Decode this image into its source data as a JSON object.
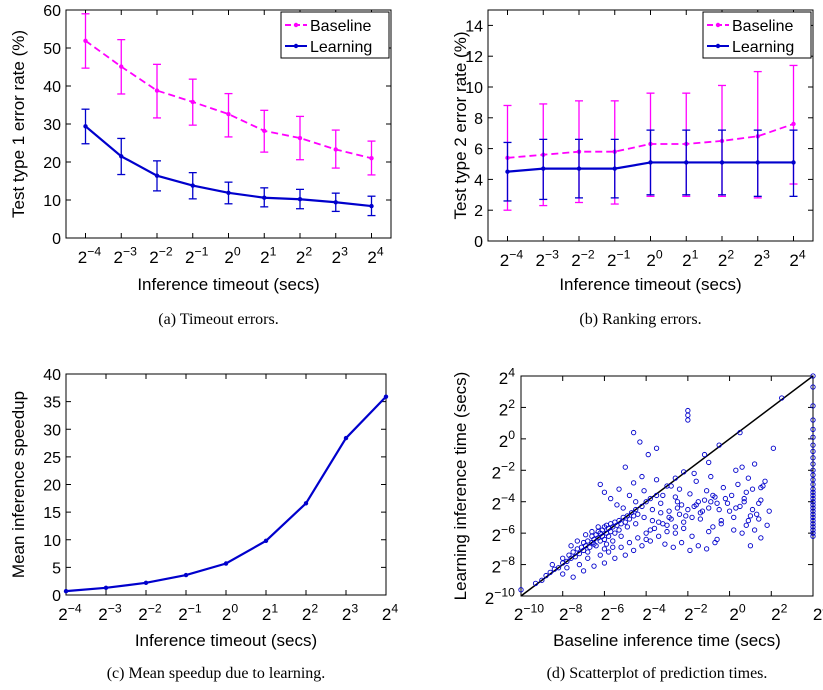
{
  "chart_data": [
    {
      "panel": "a",
      "type": "line",
      "caption": "(a)  Timeout errors.",
      "xlabel": "Inference timeout (secs)",
      "ylabel": "Test type 1 error rate (%)",
      "x_exponents": [
        -4,
        -3,
        -2,
        -1,
        0,
        1,
        2,
        3,
        4
      ],
      "x_tick_labels": [
        "2^-4",
        "2^-3",
        "2^-2",
        "2^-1",
        "2^0",
        "2^1",
        "2^2",
        "2^3",
        "2^4"
      ],
      "ylim": [
        0,
        60
      ],
      "yticks": [
        0,
        10,
        20,
        30,
        40,
        50,
        60
      ],
      "legend_position": "top-right",
      "series": [
        {
          "name": "Baseline",
          "color": "#ff00ff",
          "dash": true,
          "values": [
            51.9,
            45.1,
            38.8,
            35.8,
            32.6,
            28.2,
            26.3,
            23.3,
            21.0
          ],
          "lower": [
            44.7,
            37.9,
            31.6,
            29.7,
            26.6,
            22.6,
            20.6,
            18.4,
            16.6
          ],
          "upper": [
            59.0,
            52.2,
            45.7,
            41.8,
            38.0,
            33.6,
            32.0,
            28.4,
            25.5
          ]
        },
        {
          "name": "Learning",
          "color": "#0000cc",
          "dash": false,
          "values": [
            29.4,
            21.5,
            16.4,
            13.8,
            11.9,
            10.6,
            10.2,
            9.4,
            8.4
          ],
          "lower": [
            24.8,
            16.7,
            12.4,
            10.3,
            9.0,
            8.2,
            7.7,
            7.0,
            5.9
          ],
          "upper": [
            33.9,
            26.2,
            20.3,
            17.2,
            14.7,
            13.2,
            12.8,
            11.8,
            11.0
          ]
        }
      ]
    },
    {
      "panel": "b",
      "type": "line",
      "caption": "(b)  Ranking errors.",
      "xlabel": "Inference timeout (secs)",
      "ylabel": "Test type 2 error rate (%)",
      "x_exponents": [
        -4,
        -3,
        -2,
        -1,
        0,
        1,
        2,
        3,
        4
      ],
      "x_tick_labels": [
        "2^-4",
        "2^-3",
        "2^-2",
        "2^-1",
        "2^0",
        "2^1",
        "2^2",
        "2^3",
        "2^4"
      ],
      "ylim": [
        0,
        15
      ],
      "yticks": [
        0,
        2,
        4,
        6,
        8,
        10,
        12,
        14
      ],
      "legend_position": "top-right",
      "series": [
        {
          "name": "Baseline",
          "color": "#ff00ff",
          "dash": true,
          "values": [
            5.4,
            5.6,
            5.8,
            5.8,
            6.3,
            6.3,
            6.5,
            6.8,
            7.6
          ],
          "lower": [
            2.0,
            2.3,
            2.5,
            2.4,
            2.9,
            2.9,
            2.9,
            2.8,
            3.7
          ],
          "upper": [
            8.8,
            8.9,
            9.1,
            9.1,
            9.6,
            9.6,
            10.1,
            11.0,
            11.4
          ]
        },
        {
          "name": "Learning",
          "color": "#0000cc",
          "dash": false,
          "values": [
            4.5,
            4.7,
            4.7,
            4.7,
            5.1,
            5.1,
            5.1,
            5.1,
            5.1
          ],
          "lower": [
            2.6,
            2.7,
            2.8,
            2.8,
            3.0,
            3.0,
            3.0,
            2.9,
            2.9
          ],
          "upper": [
            6.4,
            6.6,
            6.6,
            6.6,
            7.2,
            7.2,
            7.2,
            7.2,
            7.2
          ]
        }
      ]
    },
    {
      "panel": "c",
      "type": "line",
      "caption": "(c)  Mean speedup due to learning.",
      "xlabel": "Inference timeout (secs)",
      "ylabel": "Mean inference speedup",
      "x_exponents": [
        -4,
        -3,
        -2,
        -1,
        0,
        1,
        2,
        3,
        4
      ],
      "x_tick_labels": [
        "2^-4",
        "2^-3",
        "2^-2",
        "2^-1",
        "2^0",
        "2^1",
        "2^2",
        "2^3",
        "2^4"
      ],
      "ylim": [
        0,
        40
      ],
      "yticks": [
        0,
        5,
        10,
        15,
        20,
        25,
        30,
        35,
        40
      ],
      "series": [
        {
          "color": "#0000cc",
          "values": [
            0.7,
            1.3,
            2.2,
            3.6,
            5.7,
            9.8,
            16.6,
            28.4,
            35.9
          ]
        }
      ]
    },
    {
      "panel": "d",
      "type": "scatter",
      "caption": "(d)  Scatterplot of prediction times.",
      "xlabel": "Baseline inference time (secs)",
      "ylabel": "Learning inference time (secs)",
      "xlim_log2": [
        -10,
        4
      ],
      "ylim_log2": [
        -10,
        4
      ],
      "x_tick_labels": [
        "2^-10",
        "2^-8",
        "2^-6",
        "2^-4",
        "2^-2",
        "2^0",
        "2^2",
        "2^4"
      ],
      "y_tick_labels": [
        "2^-10",
        "2^-8",
        "2^-6",
        "2^-4",
        "2^-2",
        "2^0",
        "2^2",
        "2^4"
      ],
      "diagonal": true,
      "color": "#0000cc",
      "points_log2": [
        [
          -10,
          -9.6
        ],
        [
          -9.3,
          -9.2
        ],
        [
          -9.0,
          -9.0
        ],
        [
          -8.8,
          -8.7
        ],
        [
          -8.6,
          -8.5
        ],
        [
          -8.4,
          -8.3
        ],
        [
          -8.5,
          -8.0
        ],
        [
          -8.2,
          -8.2
        ],
        [
          -8.0,
          -7.9
        ],
        [
          -8.0,
          -7.6
        ],
        [
          -7.8,
          -7.8
        ],
        [
          -7.7,
          -7.4
        ],
        [
          -7.6,
          -7.6
        ],
        [
          -7.5,
          -7.2
        ],
        [
          -7.4,
          -7.5
        ],
        [
          -7.3,
          -7.0
        ],
        [
          -7.2,
          -7.3
        ],
        [
          -7.1,
          -6.9
        ],
        [
          -7.0,
          -7.1
        ],
        [
          -7.0,
          -6.6
        ],
        [
          -6.9,
          -6.8
        ],
        [
          -6.8,
          -7.2
        ],
        [
          -6.8,
          -6.5
        ],
        [
          -6.7,
          -6.9
        ],
        [
          -6.6,
          -6.6
        ],
        [
          -6.6,
          -6.2
        ],
        [
          -6.5,
          -6.7
        ],
        [
          -6.5,
          -6.4
        ],
        [
          -6.4,
          -6.1
        ],
        [
          -6.4,
          -6.8
        ],
        [
          -6.3,
          -6.3
        ],
        [
          -6.3,
          -5.9
        ],
        [
          -6.2,
          -6.5
        ],
        [
          -6.2,
          -6.0
        ],
        [
          -6.1,
          -6.2
        ],
        [
          -6.1,
          -5.8
        ],
        [
          -6.0,
          -6.4
        ],
        [
          -6.0,
          -5.6
        ],
        [
          -5.9,
          -6.0
        ],
        [
          -5.9,
          -5.5
        ],
        [
          -5.8,
          -6.2
        ],
        [
          -5.8,
          -5.7
        ],
        [
          -5.7,
          -5.9
        ],
        [
          -5.7,
          -5.4
        ],
        [
          -5.6,
          -5.6
        ],
        [
          -5.5,
          -5.3
        ],
        [
          -5.5,
          -6.0
        ],
        [
          -5.4,
          -5.5
        ],
        [
          -5.3,
          -5.2
        ],
        [
          -5.3,
          -5.8
        ],
        [
          -5.2,
          -5.4
        ],
        [
          -5.1,
          -5.0
        ],
        [
          -5.0,
          -5.3
        ],
        [
          -4.9,
          -4.9
        ],
        [
          -4.8,
          -5.1
        ],
        [
          -4.7,
          -4.7
        ],
        [
          -4.6,
          -4.9
        ],
        [
          -4.5,
          -4.5
        ],
        [
          -4.4,
          -4.8
        ],
        [
          -4.2,
          -4.3
        ],
        [
          -4.0,
          -4.0
        ],
        [
          -3.8,
          -3.8
        ],
        [
          -3.5,
          -3.6
        ],
        [
          -3.0,
          -3.0
        ],
        [
          -2.6,
          -2.5
        ],
        [
          -2.2,
          -2.1
        ],
        [
          -1.2,
          -1.0
        ],
        [
          -0.5,
          -0.4
        ],
        [
          0.5,
          0.4
        ],
        [
          2.5,
          2.6
        ],
        [
          -8.0,
          -8.6
        ],
        [
          -7.8,
          -8.2
        ],
        [
          -7.5,
          -8.8
        ],
        [
          -7.2,
          -8.0
        ],
        [
          -7.0,
          -8.4
        ],
        [
          -6.8,
          -7.6
        ],
        [
          -6.5,
          -8.1
        ],
        [
          -6.2,
          -7.4
        ],
        [
          -6.0,
          -7.9
        ],
        [
          -5.8,
          -7.2
        ],
        [
          -5.5,
          -7.6
        ],
        [
          -5.2,
          -6.9
        ],
        [
          -5.0,
          -7.4
        ],
        [
          -4.8,
          -6.6
        ],
        [
          -4.6,
          -7.1
        ],
        [
          -4.4,
          -6.3
        ],
        [
          -4.2,
          -6.8
        ],
        [
          -4.0,
          -6.0
        ],
        [
          -3.8,
          -6.5
        ],
        [
          -3.6,
          -5.7
        ],
        [
          -3.4,
          -6.2
        ],
        [
          -3.2,
          -5.4
        ],
        [
          -3.0,
          -5.9
        ],
        [
          -2.8,
          -5.1
        ],
        [
          -2.6,
          -5.6
        ],
        [
          -2.4,
          -4.8
        ],
        [
          -2.2,
          -5.3
        ],
        [
          -2.0,
          -4.5
        ],
        [
          -1.8,
          -5.0
        ],
        [
          -1.6,
          -4.2
        ],
        [
          -1.4,
          -4.7
        ],
        [
          -1.2,
          -3.9
        ],
        [
          -1.0,
          -4.4
        ],
        [
          -0.8,
          -3.6
        ],
        [
          -0.6,
          -4.1
        ],
        [
          -0.4,
          -5.2
        ],
        [
          -0.2,
          -3.8
        ],
        [
          0.0,
          -4.6
        ],
        [
          0.2,
          -5.0
        ],
        [
          0.5,
          -4.3
        ],
        [
          0.8,
          -3.4
        ],
        [
          1.0,
          -4.9
        ],
        [
          1.2,
          -5.8
        ],
        [
          1.5,
          -3.1
        ],
        [
          1.8,
          -5.5
        ],
        [
          -5.3,
          -3.2
        ],
        [
          -5.0,
          -1.8
        ],
        [
          -4.6,
          -2.8
        ],
        [
          -4.2,
          -2.4
        ],
        [
          -3.9,
          -1.0
        ],
        [
          -3.5,
          -2.6
        ],
        [
          -3.2,
          -3.6
        ],
        [
          -2.8,
          -3.0
        ],
        [
          -2.5,
          -4.0
        ],
        [
          -1.7,
          -2.2
        ],
        [
          -1.0,
          -1.5
        ],
        [
          0.6,
          -1.8
        ],
        [
          0.9,
          -2.5
        ],
        [
          1.6,
          -3.0
        ],
        [
          2.1,
          -0.6
        ],
        [
          -2.0,
          1.8
        ],
        [
          -2.0,
          1.5
        ],
        [
          -2.0,
          1.2
        ],
        [
          -4.6,
          0.4
        ],
        [
          -4.3,
          -0.2
        ],
        [
          -3.5,
          -0.6
        ],
        [
          -6.2,
          -2.9
        ],
        [
          -6.0,
          -3.4
        ],
        [
          -5.7,
          -3.8
        ],
        [
          -5.4,
          -4.2
        ],
        [
          -5.1,
          -4.4
        ],
        [
          -4.8,
          -3.6
        ],
        [
          -4.5,
          -4.0
        ],
        [
          -4.1,
          -3.3
        ],
        [
          -3.7,
          -4.5
        ],
        [
          -3.3,
          -4.1
        ],
        [
          -2.9,
          -4.6
        ],
        [
          -2.6,
          -3.7
        ],
        [
          -2.3,
          -4.2
        ],
        [
          -1.9,
          -3.5
        ],
        [
          -1.5,
          -4.0
        ],
        [
          -1.1,
          -3.3
        ],
        [
          -0.7,
          -3.7
        ],
        [
          -0.3,
          -3.1
        ],
        [
          0.1,
          -3.6
        ],
        [
          0.4,
          -2.9
        ],
        [
          0.7,
          -3.8
        ],
        [
          1.1,
          -3.2
        ],
        [
          1.4,
          -4.1
        ],
        [
          1.7,
          -2.7
        ],
        [
          -6.0,
          -7.0
        ],
        [
          -5.6,
          -6.5
        ],
        [
          -5.2,
          -6.2
        ],
        [
          -4.9,
          -5.6
        ],
        [
          -4.5,
          -5.4
        ],
        [
          -4.1,
          -5.0
        ],
        [
          -3.7,
          -5.2
        ],
        [
          -3.3,
          -4.7
        ],
        [
          -2.9,
          -5.0
        ],
        [
          -2.5,
          -4.4
        ],
        [
          -2.1,
          -4.9
        ],
        [
          -1.7,
          -4.3
        ],
        [
          -1.3,
          -4.6
        ],
        [
          -0.9,
          -4.0
        ],
        [
          -0.5,
          -4.5
        ],
        [
          -0.1,
          -4.1
        ],
        [
          0.3,
          -4.4
        ],
        [
          0.7,
          -4.0
        ],
        [
          1.1,
          -4.5
        ],
        [
          1.5,
          -3.9
        ],
        [
          -3.8,
          -5.8
        ],
        [
          -3.4,
          -5.3
        ],
        [
          -3.0,
          -5.5
        ],
        [
          -2.6,
          -6.0
        ],
        [
          -2.2,
          -5.7
        ],
        [
          -1.8,
          -6.2
        ],
        [
          -1.4,
          -5.1
        ],
        [
          -1.0,
          -5.9
        ],
        [
          -0.6,
          -6.4
        ],
        [
          0.6,
          -6.0
        ],
        [
          0.9,
          -5.2
        ],
        [
          1.3,
          -4.8
        ],
        [
          1.9,
          -4.6
        ],
        [
          -7.6,
          -6.8
        ],
        [
          -7.3,
          -6.5
        ],
        [
          -6.9,
          -6.1
        ],
        [
          -6.6,
          -5.9
        ],
        [
          -6.3,
          -5.6
        ],
        [
          -5.9,
          -6.7
        ],
        [
          -5.6,
          -6.9
        ],
        [
          -4.0,
          -6.4
        ],
        [
          -3.1,
          -6.7
        ],
        [
          -2.7,
          -6.9
        ],
        [
          -2.3,
          -6.6
        ],
        [
          -1.9,
          -7.1
        ],
        [
          -1.5,
          -6.8
        ],
        [
          -1.1,
          -7.0
        ],
        [
          -0.7,
          -6.6
        ],
        [
          1.0,
          -6.8
        ],
        [
          1.5,
          -6.3
        ],
        [
          -0.8,
          -5.6
        ],
        [
          -0.4,
          -5.4
        ],
        [
          0.2,
          -5.8
        ],
        [
          0.8,
          -5.5
        ],
        [
          1.4,
          -5.1
        ],
        [
          -2.4,
          -3.2
        ],
        [
          -1.6,
          -2.7
        ],
        [
          -0.9,
          -2.4
        ],
        [
          0.3,
          -2.0
        ],
        [
          1.2,
          -1.6
        ],
        [
          4,
          4
        ],
        [
          4,
          3.3
        ],
        [
          4,
          2.1
        ],
        [
          4,
          1.2
        ],
        [
          4,
          0.6
        ],
        [
          4,
          0.1
        ],
        [
          4,
          -0.4
        ],
        [
          4,
          -0.8
        ],
        [
          4,
          -1.2
        ],
        [
          4,
          -1.6
        ],
        [
          4,
          -2.0
        ],
        [
          4,
          -2.3
        ],
        [
          4,
          -2.6
        ],
        [
          4,
          -2.9
        ],
        [
          4,
          -3.2
        ],
        [
          4,
          -3.4
        ],
        [
          4,
          -3.6
        ],
        [
          4,
          -3.8
        ],
        [
          4,
          -4.0
        ],
        [
          4,
          -4.2
        ],
        [
          4,
          -4.4
        ],
        [
          4,
          -4.6
        ],
        [
          4,
          -4.8
        ],
        [
          4,
          -5.0
        ],
        [
          4,
          -5.2
        ],
        [
          4,
          -5.4
        ],
        [
          4,
          -5.6
        ],
        [
          4,
          -5.8
        ],
        [
          4,
          -6.0
        ],
        [
          4,
          -6.2
        ]
      ]
    }
  ]
}
